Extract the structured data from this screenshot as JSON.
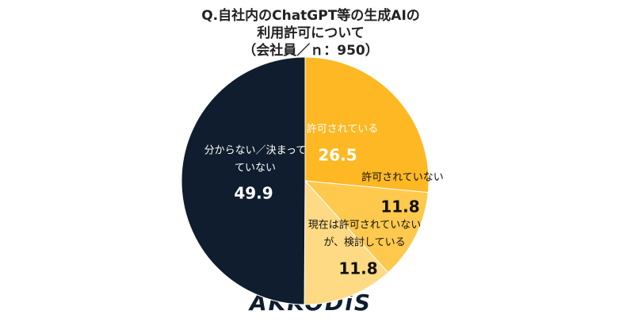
{
  "chart_data": {
    "type": "pie",
    "title": [
      "Q.自社内のChatGPT等の生成AIの",
      "利用許可について",
      "（会社員／ｎ：950）"
    ],
    "categories": [
      [
        "許可されている"
      ],
      [
        "許可されていない"
      ],
      [
        "現在は許可されていない",
        "が、検討している"
      ],
      [
        "分からない／決まって",
        "ていない"
      ]
    ],
    "values": [
      26.5,
      11.8,
      11.8,
      49.9
    ],
    "colors": [
      "#fdb823",
      "#ffc94d",
      "#ffda84",
      "#0f1d2e"
    ],
    "logo": "AKKODiS"
  }
}
